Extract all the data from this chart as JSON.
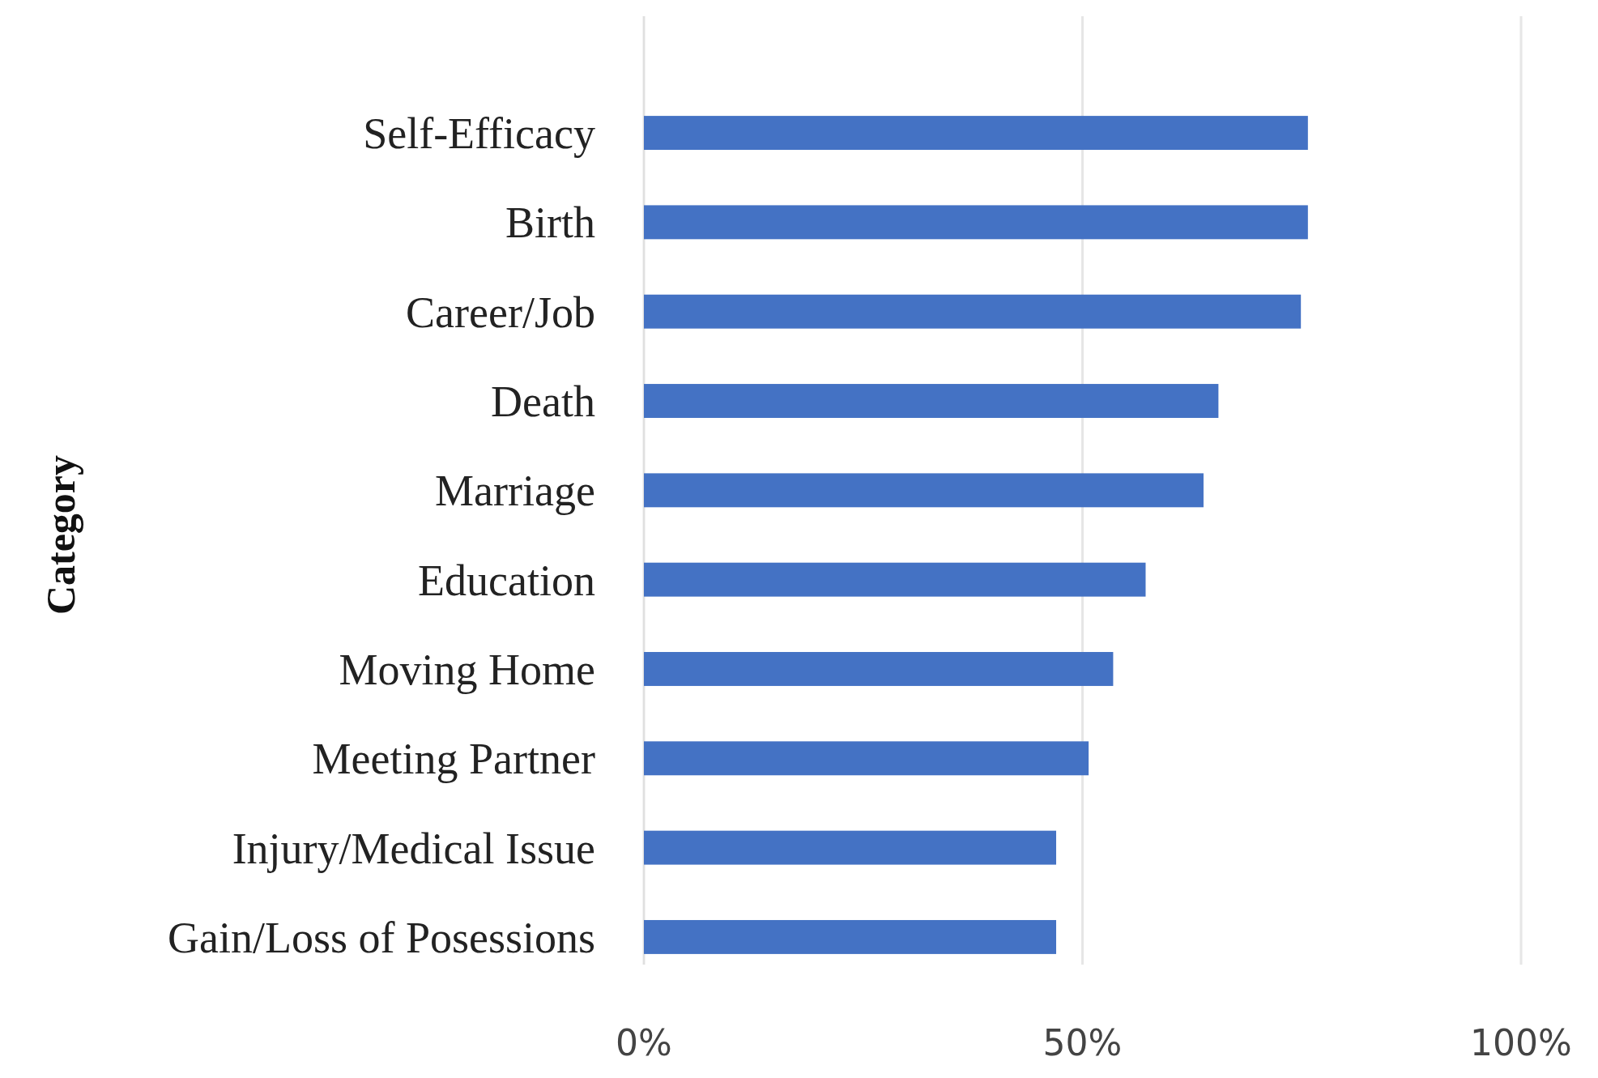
{
  "chart_data": {
    "type": "bar",
    "orientation": "horizontal",
    "ylabel": "Category",
    "categories": [
      "Self-Efficacy",
      "Birth",
      "Career/Job",
      "Death",
      "Marriage",
      "Education",
      "Moving Home",
      "Meeting Partner",
      "Injury/Medical Issue",
      "Gain/Loss of Posessions"
    ],
    "values": [
      75.7,
      75.7,
      74.9,
      65.5,
      63.8,
      57.2,
      53.5,
      50.7,
      47,
      47
    ],
    "color": "#4472c4",
    "xlim": [
      0,
      100
    ],
    "xticks": [
      {
        "value": 0,
        "label": "0%"
      },
      {
        "value": 50,
        "label": "50%"
      },
      {
        "value": 100,
        "label": "100%"
      }
    ],
    "grid": "x"
  }
}
